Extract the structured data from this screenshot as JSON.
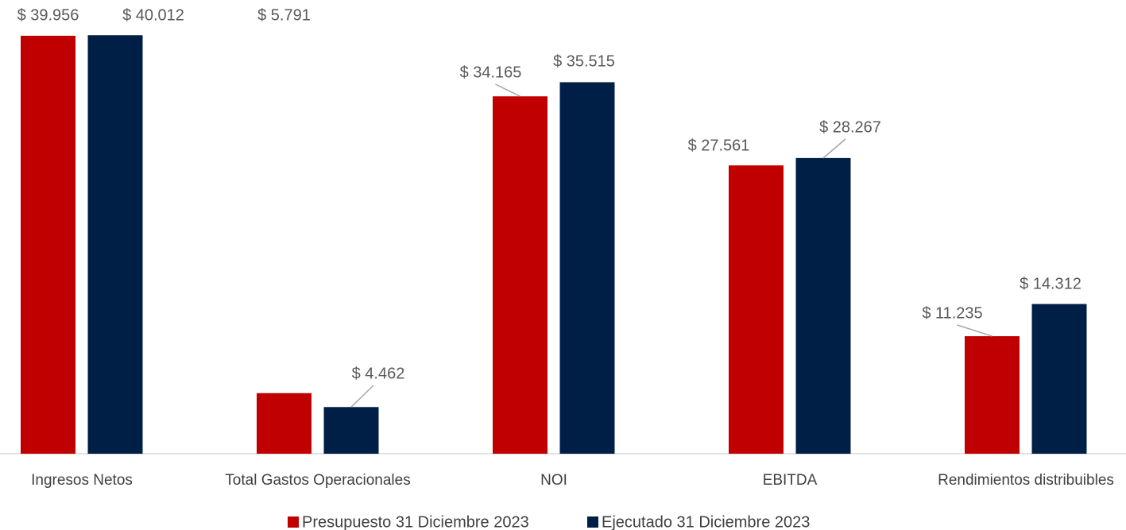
{
  "chart_data": {
    "type": "bar",
    "categories": [
      "Ingresos Netos",
      "Total Gastos Operacionales",
      "NOI",
      "EBITDA",
      "Rendimientos distribuibles"
    ],
    "series": [
      {
        "name": "Presupuesto 31 Diciembre 2023",
        "color": "#c00000",
        "values": [
          39956,
          5791,
          34165,
          27561,
          11235
        ],
        "value_labels": [
          "$ 39.956",
          "$ 5.791",
          "$ 34.165",
          "$ 27.561",
          "$ 11.235"
        ]
      },
      {
        "name": "Ejecutado 31 Diciembre 2023",
        "color": "#001f46",
        "values": [
          40012,
          4462,
          35515,
          28267,
          14312
        ],
        "value_labels": [
          "$ 40.012",
          "$ 4.462",
          "$ 35.515",
          "$ 28.267",
          "$ 14.312"
        ]
      }
    ],
    "legend": "bottom"
  }
}
